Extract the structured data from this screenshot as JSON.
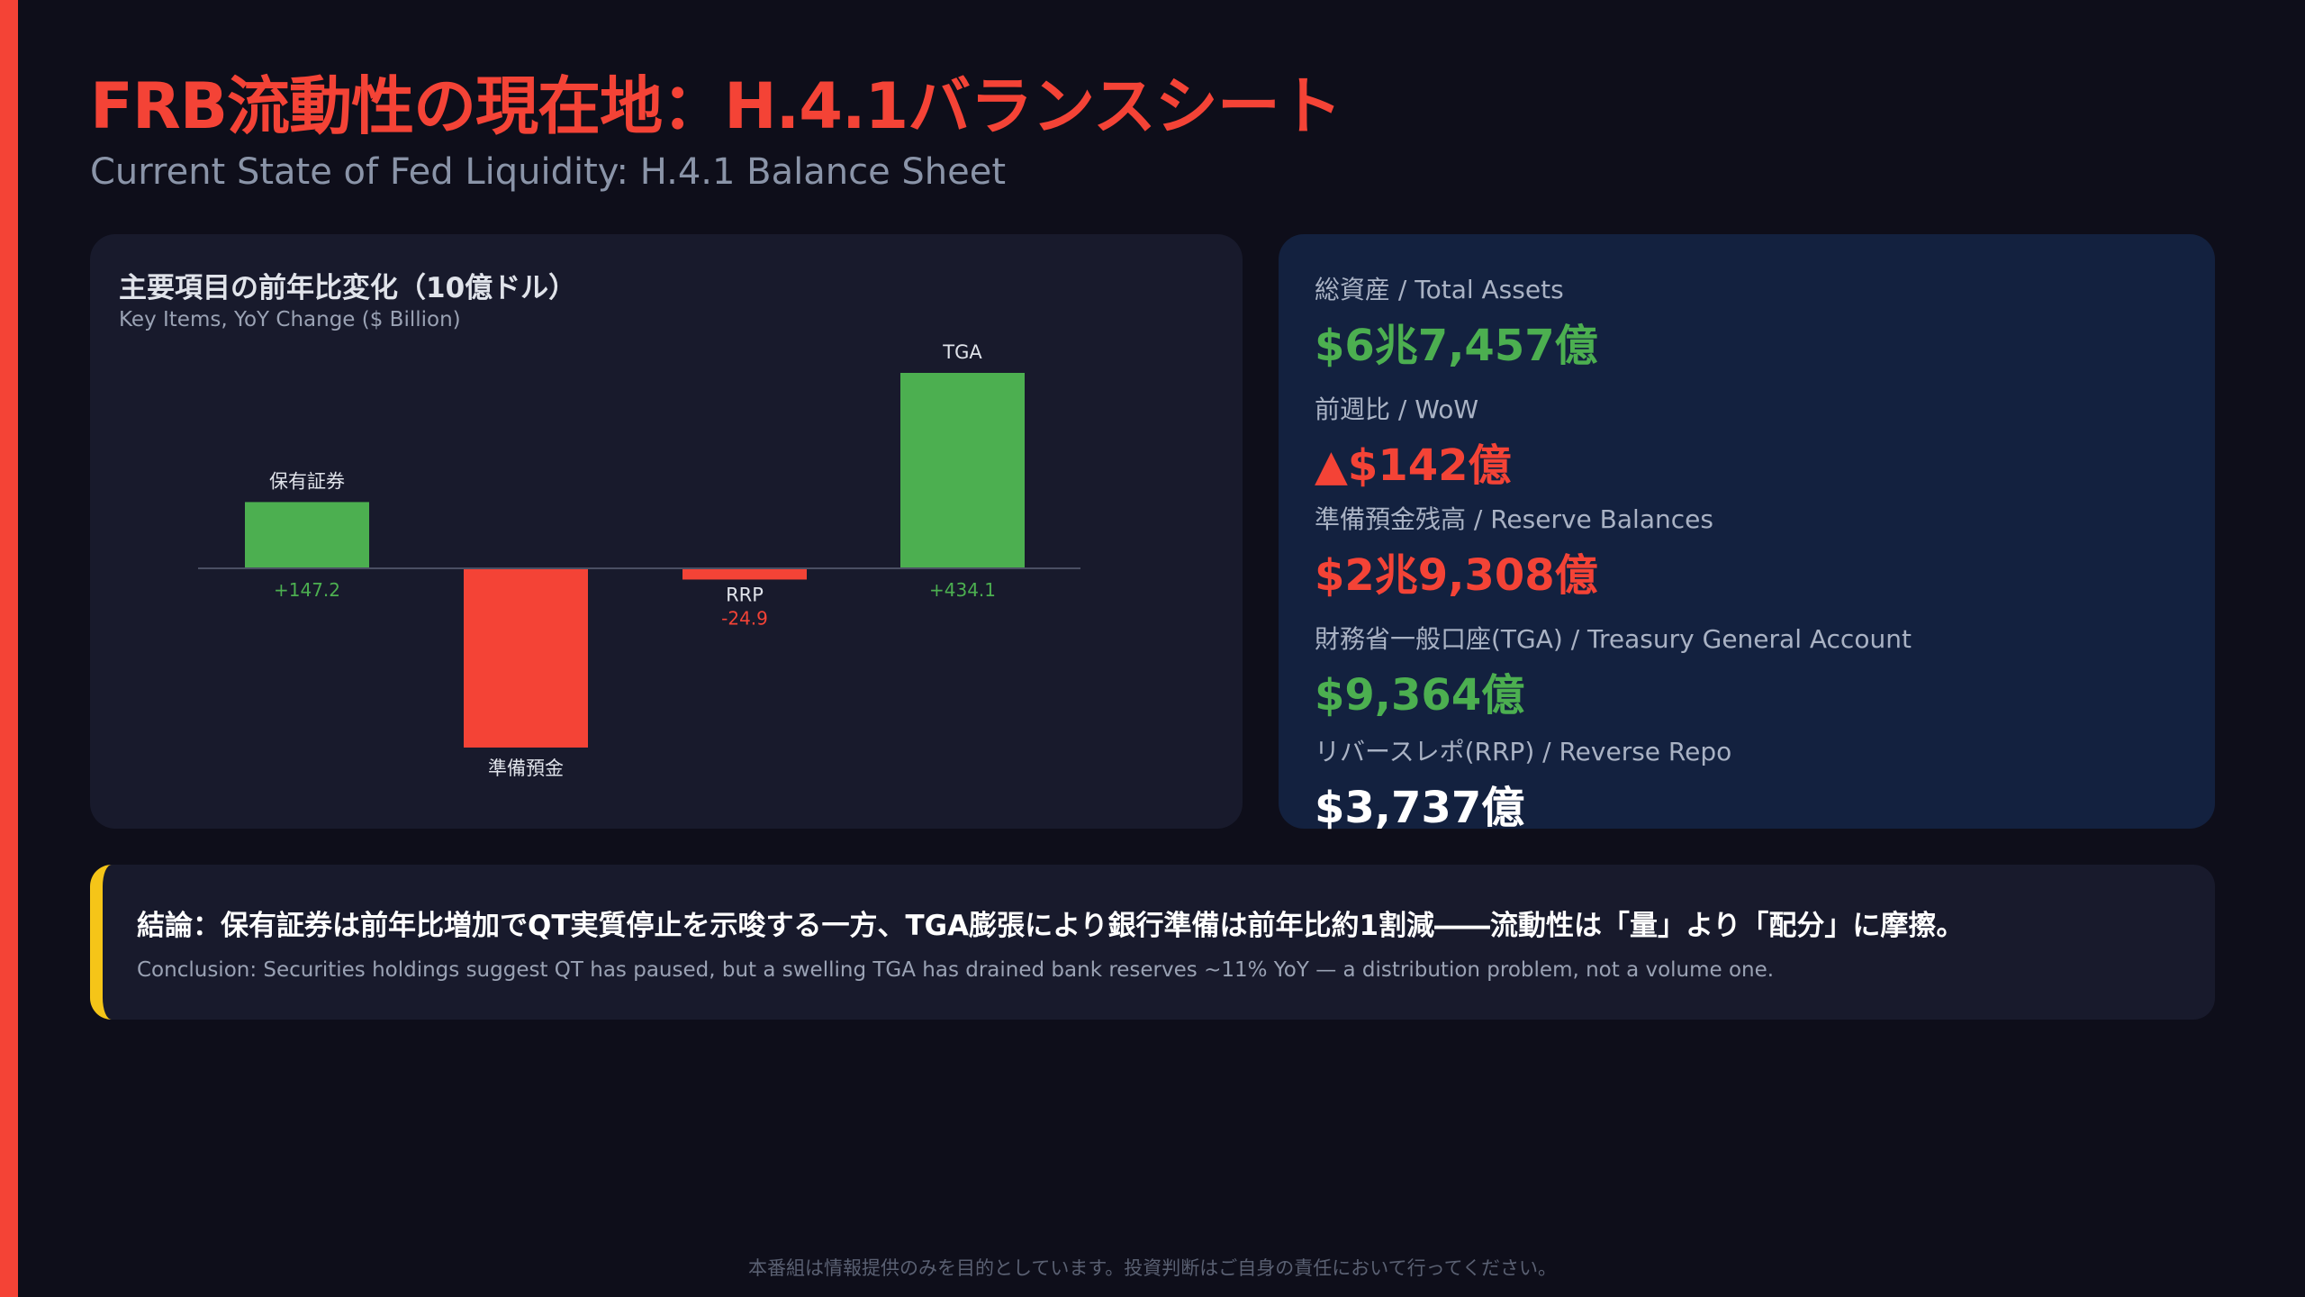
{
  "page": {
    "title": "FRB流動性の現在地：H.4.1バランスシート",
    "subtitle": "Current State of Fed Liquidity: H.4.1 Balance Sheet",
    "disclaimer": "本番組は情報提供のみを目的としています。投資判断はご自身の責任において行ってください。"
  },
  "colors": {
    "accent": "#f44336",
    "positive": "#4caf50",
    "negative": "#f44336",
    "highlight": "#f5c518"
  },
  "chart_data": {
    "type": "bar",
    "title": "主要項目の前年比変化（10億ドル）",
    "subtitle": "Key Items, YoY Change ($ Billion)",
    "categories": [
      "保有証券",
      "準備預金",
      "RRP",
      "TGA"
    ],
    "values": [
      147.2,
      -398.0,
      -24.9,
      434.1
    ],
    "value_labels": [
      "+147.2",
      "",
      "-24.9",
      "+434.1"
    ],
    "ylim": [
      -430,
      470
    ],
    "xlabel": "",
    "ylabel": "",
    "grid": false
  },
  "stats": [
    {
      "label": "総資産 / Total Assets",
      "value": "$6兆7,457億",
      "color": "#4caf50"
    },
    {
      "label": "前週比 / WoW",
      "value": "▲$142億",
      "color": "#f44336"
    },
    {
      "label": "準備預金残高 / Reserve Balances",
      "value": "$2兆9,308億",
      "color": "#f44336"
    },
    {
      "label": "財務省一般口座(TGA) / Treasury General Account",
      "value": "$9,364億",
      "color": "#4caf50"
    },
    {
      "label": "リバースレポ(RRP) / Reverse Repo",
      "value": "$3,737億",
      "color": "#ffffff"
    }
  ],
  "conclusion": {
    "main": "結論：保有証券は前年比増加でQT実質停止を示唆する一方、TGA膨張により銀行準備は前年比約1割減――流動性は「量」より「配分」に摩擦。",
    "sub": "Conclusion: Securities holdings suggest QT has paused, but a swelling TGA has drained bank reserves ~11% YoY — a distribution problem, not a volume one."
  }
}
